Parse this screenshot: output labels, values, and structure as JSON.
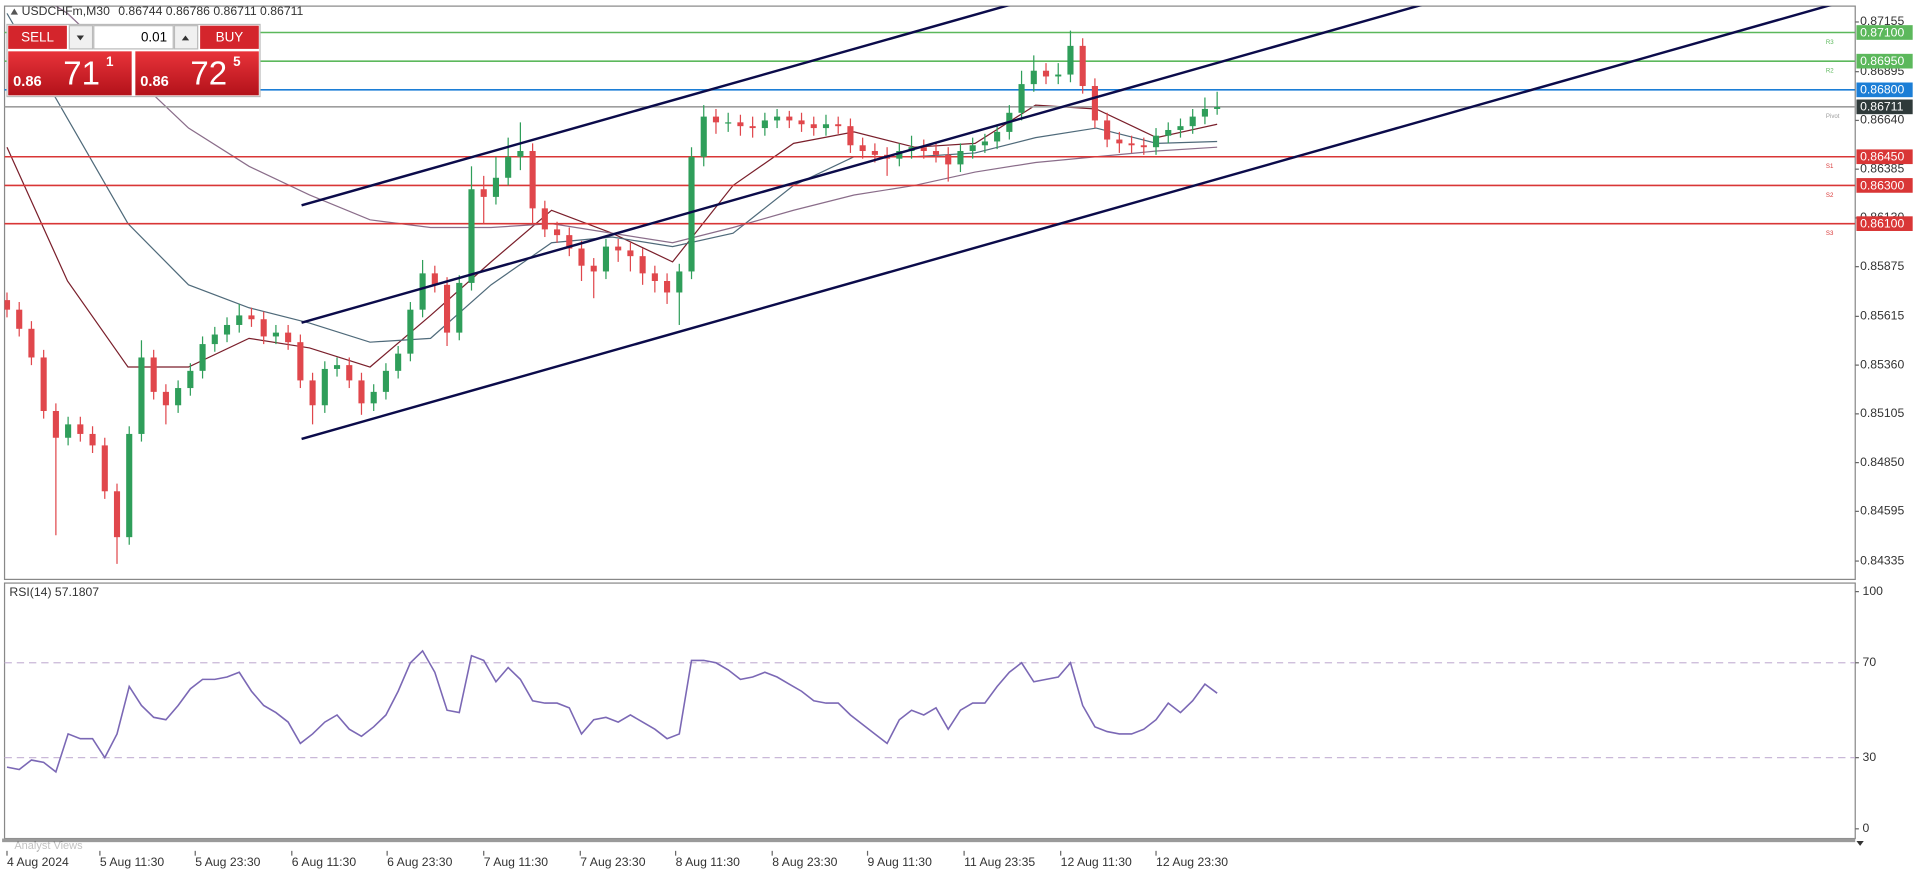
{
  "header": {
    "symbol": "USDCHFm,M30",
    "quote": [
      "0.86744",
      "0.86786",
      "0.86711",
      "0.86711"
    ]
  },
  "trade_panel": {
    "sell": "SELL",
    "buy": "BUY",
    "lot": "0.01",
    "bid": {
      "big": "0.86",
      "pips": "71",
      "frac": "1"
    },
    "ask": {
      "big": "0.86",
      "pips": "72",
      "frac": "5"
    }
  },
  "footer": {
    "tab": "Analyst Views"
  },
  "chart_data": [
    {
      "type": "candlestick",
      "ylim": [
        0.84239,
        0.87238
      ],
      "yticks": [
        {
          "value": 0.87155,
          "label": "0.87155"
        },
        {
          "value": 0.86895,
          "label": "0.86895"
        },
        {
          "value": 0.8664,
          "label": "0.86640"
        },
        {
          "value": 0.86385,
          "label": "0.86385"
        },
        {
          "value": 0.8613,
          "label": "0.86130"
        },
        {
          "value": 0.85875,
          "label": "0.85875"
        },
        {
          "value": 0.85615,
          "label": "0.85615"
        },
        {
          "value": 0.8536,
          "label": "0.85360"
        },
        {
          "value": 0.85105,
          "label": "0.85105"
        },
        {
          "value": 0.8485,
          "label": "0.84850"
        },
        {
          "value": 0.84595,
          "label": "0.84595"
        },
        {
          "value": 0.84335,
          "label": "0.84335"
        }
      ],
      "xticks": [
        {
          "value": 0,
          "label": "4 Aug 2024"
        },
        {
          "value": 7.6,
          "label": "5 Aug 11:30"
        },
        {
          "value": 15.4,
          "label": "5 Aug 23:30"
        },
        {
          "value": 23.3,
          "label": "6 Aug 11:30"
        },
        {
          "value": 31.1,
          "label": "6 Aug 23:30"
        },
        {
          "value": 39,
          "label": "7 Aug 11:30"
        },
        {
          "value": 46.9,
          "label": "7 Aug 23:30"
        },
        {
          "value": 54.7,
          "label": "8 Aug 11:30"
        },
        {
          "value": 62.6,
          "label": "8 Aug 23:30"
        },
        {
          "value": 70.4,
          "label": "9 Aug 11:30"
        },
        {
          "value": 78.3,
          "label": "11 Aug 23:35"
        },
        {
          "value": 86.2,
          "label": "12 Aug 11:30"
        },
        {
          "value": 94,
          "label": "12 Aug 23:30"
        }
      ],
      "series": [
        {
          "up_color": "#2f9e5a",
          "down_color": "#e0474c",
          "ohlc": [
            [
              0.857,
              0.8574,
              0.8561,
              0.8565
            ],
            [
              0.8565,
              0.8569,
              0.8551,
              0.8555
            ],
            [
              0.8555,
              0.8559,
              0.8536,
              0.854
            ],
            [
              0.854,
              0.8544,
              0.8508,
              0.8512
            ],
            [
              0.8512,
              0.8516,
              0.8447,
              0.8498
            ],
            [
              0.8498,
              0.8509,
              0.8494,
              0.8505
            ],
            [
              0.8505,
              0.8509,
              0.8496,
              0.85
            ],
            [
              0.85,
              0.8504,
              0.849,
              0.8494
            ],
            [
              0.8494,
              0.8498,
              0.8466,
              0.847
            ],
            [
              0.847,
              0.8474,
              0.8432,
              0.8446
            ],
            [
              0.8446,
              0.8504,
              0.8442,
              0.85
            ],
            [
              0.85,
              0.8549,
              0.8496,
              0.854
            ],
            [
              0.854,
              0.8544,
              0.8518,
              0.8522
            ],
            [
              0.8522,
              0.8526,
              0.8505,
              0.8515
            ],
            [
              0.8515,
              0.8528,
              0.8511,
              0.8524
            ],
            [
              0.8524,
              0.8537,
              0.852,
              0.8533
            ],
            [
              0.8533,
              0.8551,
              0.8529,
              0.8547
            ],
            [
              0.8547,
              0.8556,
              0.8543,
              0.8552
            ],
            [
              0.8552,
              0.8561,
              0.8548,
              0.8557
            ],
            [
              0.8557,
              0.8568,
              0.8553,
              0.8562
            ],
            [
              0.8562,
              0.8566,
              0.8556,
              0.856
            ],
            [
              0.856,
              0.8564,
              0.8547,
              0.8551
            ],
            [
              0.8551,
              0.8557,
              0.8547,
              0.8553
            ],
            [
              0.8553,
              0.8557,
              0.8544,
              0.8548
            ],
            [
              0.8548,
              0.8552,
              0.8524,
              0.8528
            ],
            [
              0.8528,
              0.8532,
              0.8505,
              0.8515
            ],
            [
              0.8515,
              0.8538,
              0.8511,
              0.8534
            ],
            [
              0.8534,
              0.854,
              0.853,
              0.8536
            ],
            [
              0.8536,
              0.854,
              0.8524,
              0.8528
            ],
            [
              0.8528,
              0.8532,
              0.851,
              0.8516
            ],
            [
              0.8516,
              0.8526,
              0.8512,
              0.8522
            ],
            [
              0.8522,
              0.8537,
              0.8518,
              0.8533
            ],
            [
              0.8533,
              0.8546,
              0.8529,
              0.8542
            ],
            [
              0.8542,
              0.8569,
              0.8538,
              0.8565
            ],
            [
              0.8565,
              0.8591,
              0.8561,
              0.8584
            ],
            [
              0.8584,
              0.8588,
              0.8574,
              0.8578
            ],
            [
              0.8578,
              0.8582,
              0.8546,
              0.8553
            ],
            [
              0.8553,
              0.8583,
              0.8549,
              0.8579
            ],
            [
              0.8579,
              0.864,
              0.8575,
              0.8628
            ],
            [
              0.8628,
              0.8635,
              0.861,
              0.8624
            ],
            [
              0.8624,
              0.8645,
              0.862,
              0.8634
            ],
            [
              0.8634,
              0.8655,
              0.863,
              0.8645
            ],
            [
              0.8645,
              0.8663,
              0.8638,
              0.8648
            ],
            [
              0.8648,
              0.8652,
              0.861,
              0.8618
            ],
            [
              0.8618,
              0.8622,
              0.8603,
              0.8607
            ],
            [
              0.8607,
              0.8611,
              0.86,
              0.8604
            ],
            [
              0.8604,
              0.8608,
              0.8593,
              0.8597
            ],
            [
              0.8597,
              0.8601,
              0.858,
              0.8588
            ],
            [
              0.8588,
              0.8592,
              0.8571,
              0.8585
            ],
            [
              0.8585,
              0.8602,
              0.8581,
              0.8598
            ],
            [
              0.8598,
              0.8602,
              0.859,
              0.8596
            ],
            [
              0.8596,
              0.86,
              0.8585,
              0.8593
            ],
            [
              0.8593,
              0.8597,
              0.8578,
              0.8584
            ],
            [
              0.8584,
              0.8588,
              0.8574,
              0.858
            ],
            [
              0.858,
              0.8584,
              0.8568,
              0.8574
            ],
            [
              0.8574,
              0.8589,
              0.8557,
              0.8585
            ],
            [
              0.8585,
              0.865,
              0.8581,
              0.8645
            ],
            [
              0.8645,
              0.8672,
              0.864,
              0.8666
            ],
            [
              0.8666,
              0.867,
              0.8657,
              0.8663
            ],
            [
              0.8663,
              0.8668,
              0.8658,
              0.8663
            ],
            [
              0.8663,
              0.8667,
              0.8656,
              0.8661
            ],
            [
              0.8661,
              0.8666,
              0.8655,
              0.866
            ],
            [
              0.866,
              0.8668,
              0.8656,
              0.8664
            ],
            [
              0.8664,
              0.867,
              0.866,
              0.8666
            ],
            [
              0.8666,
              0.8669,
              0.866,
              0.8664
            ],
            [
              0.8664,
              0.8668,
              0.8658,
              0.8662
            ],
            [
              0.8662,
              0.8666,
              0.8656,
              0.866
            ],
            [
              0.866,
              0.8667,
              0.8656,
              0.8662
            ],
            [
              0.8662,
              0.8666,
              0.8657,
              0.8661
            ],
            [
              0.8661,
              0.8665,
              0.8647,
              0.8651
            ],
            [
              0.8651,
              0.8655,
              0.8644,
              0.8648
            ],
            [
              0.8648,
              0.8652,
              0.8642,
              0.8646
            ],
            [
              0.8646,
              0.865,
              0.8635,
              0.8644
            ],
            [
              0.8644,
              0.8652,
              0.864,
              0.8648
            ],
            [
              0.8648,
              0.8656,
              0.8644,
              0.865
            ],
            [
              0.865,
              0.8654,
              0.8644,
              0.8648
            ],
            [
              0.8648,
              0.8652,
              0.8642,
              0.8646
            ],
            [
              0.8646,
              0.865,
              0.8632,
              0.8641
            ],
            [
              0.8641,
              0.8652,
              0.8637,
              0.8648
            ],
            [
              0.8648,
              0.8655,
              0.8644,
              0.8651
            ],
            [
              0.8651,
              0.8657,
              0.8647,
              0.8653
            ],
            [
              0.8653,
              0.8662,
              0.8649,
              0.8658
            ],
            [
              0.8658,
              0.8672,
              0.8654,
              0.8668
            ],
            [
              0.8668,
              0.869,
              0.8664,
              0.8683
            ],
            [
              0.8683,
              0.8698,
              0.8679,
              0.869
            ],
            [
              0.869,
              0.8694,
              0.8683,
              0.8687
            ],
            [
              0.8687,
              0.8694,
              0.8683,
              0.8688
            ],
            [
              0.8688,
              0.8711,
              0.8684,
              0.8703
            ],
            [
              0.8703,
              0.8707,
              0.8678,
              0.8682
            ],
            [
              0.8682,
              0.8686,
              0.866,
              0.8664
            ],
            [
              0.8664,
              0.8668,
              0.865,
              0.8654
            ],
            [
              0.8654,
              0.8658,
              0.8647,
              0.8652
            ],
            [
              0.8652,
              0.8656,
              0.8647,
              0.8651
            ],
            [
              0.8651,
              0.8655,
              0.8646,
              0.865
            ],
            [
              0.865,
              0.866,
              0.8646,
              0.8656
            ],
            [
              0.8656,
              0.8663,
              0.8652,
              0.8659
            ],
            [
              0.8659,
              0.8665,
              0.8655,
              0.8661
            ],
            [
              0.8661,
              0.867,
              0.8657,
              0.8666
            ],
            [
              0.8666,
              0.8676,
              0.8662,
              0.867
            ],
            [
              0.867,
              0.8679,
              0.8667,
              0.8671
            ]
          ]
        }
      ],
      "moving_averages": [
        {
          "color": "#7a1f2b",
          "values": [
            0.865,
            0.858,
            0.8535,
            0.8535,
            0.855,
            0.8545,
            0.8535,
            0.8562,
            0.859,
            0.8617,
            0.8605,
            0.859,
            0.863,
            0.8652,
            0.8658,
            0.865,
            0.8652,
            0.8672,
            0.867,
            0.8655,
            0.8662
          ]
        },
        {
          "color": "#4f6a7a",
          "values": [
            0.872,
            0.8665,
            0.861,
            0.8578,
            0.8566,
            0.8558,
            0.8548,
            0.855,
            0.8578,
            0.86,
            0.8603,
            0.8598,
            0.8605,
            0.863,
            0.8645,
            0.8645,
            0.8647,
            0.8655,
            0.866,
            0.8652,
            0.8653
          ]
        },
        {
          "color": "#8a6d8a",
          "values": [
            0.874,
            0.872,
            0.869,
            0.866,
            0.864,
            0.8625,
            0.8612,
            0.8608,
            0.8608,
            0.861,
            0.8605,
            0.86,
            0.8608,
            0.8617,
            0.8625,
            0.863,
            0.8637,
            0.8642,
            0.8645,
            0.8648,
            0.865
          ]
        }
      ],
      "trendlines": [
        {
          "color": "#0b0b4a",
          "x": [
            24.1,
            82.4
          ],
          "y": [
            0.86196,
            0.87251
          ]
        },
        {
          "color": "#0b0b4a",
          "x": [
            24.1,
            116.1
          ],
          "y": [
            0.85582,
            0.87251
          ]
        },
        {
          "color": "#0b0b4a",
          "x": [
            24.1,
            149.6
          ],
          "y": [
            0.84974,
            0.87251
          ]
        }
      ],
      "levels": [
        {
          "name": "R3",
          "value": 0.871,
          "label": "0.87100",
          "color": "#5cb85c",
          "label_bg": "#5cb85c"
        },
        {
          "name": "R2",
          "value": 0.8695,
          "label": "0.86950",
          "color": "#5cb85c",
          "label_bg": "#5cb85c"
        },
        {
          "value": 0.868,
          "label": "0.86800",
          "color": "#1c7ed6",
          "label_bg": "#1c7ed6"
        },
        {
          "name": "Pivot",
          "value": 0.86711,
          "label": "0.86711",
          "color": "#9e9e9e",
          "label_bg": "#2f3a3a"
        },
        {
          "name": "S1",
          "value": 0.8645,
          "label": "0.86450",
          "color": "#d93636",
          "label_bg": "#d93636"
        },
        {
          "name": "S2",
          "value": 0.863,
          "label": "0.86300",
          "color": "#d93636",
          "label_bg": "#d93636"
        },
        {
          "name": "S3",
          "value": 0.861,
          "label": "0.86100",
          "color": "#d93636",
          "label_bg": "#d93636"
        }
      ]
    },
    {
      "type": "line",
      "title": "RSI(14) 57.1807",
      "ylim": [
        -4.1,
        103.6
      ],
      "yticks": [
        100,
        70,
        30,
        0
      ],
      "levels": [
        70,
        30
      ],
      "series": [
        {
          "color": "#7b68b5",
          "values": [
            26,
            25,
            29,
            28,
            24,
            40,
            38,
            38,
            30,
            40,
            60,
            52,
            47,
            46,
            52,
            59,
            63,
            63,
            64,
            66,
            58,
            52,
            49,
            45,
            36,
            40,
            45,
            48,
            42,
            39,
            43,
            48,
            58,
            70,
            75,
            66,
            50,
            49,
            73,
            71,
            62,
            68,
            63,
            54,
            53,
            53,
            51,
            40,
            46,
            47,
            45,
            48,
            45,
            42,
            38,
            40,
            71,
            71,
            70,
            67,
            63,
            64,
            66,
            64,
            61,
            58,
            54,
            53,
            53,
            48,
            44,
            40,
            36,
            46,
            50,
            48,
            51,
            42,
            50,
            53,
            53,
            60,
            66,
            70,
            62,
            63,
            64,
            70,
            52,
            43,
            41,
            40,
            40,
            42,
            46,
            53,
            49,
            54,
            61,
            57.1807
          ]
        }
      ]
    }
  ]
}
